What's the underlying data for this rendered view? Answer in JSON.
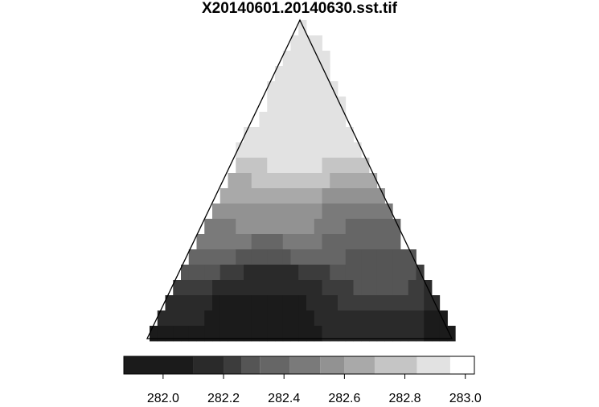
{
  "chart_data": {
    "type": "heatmap",
    "title": "X20140601.20140630.sst.tif",
    "xlabel": "",
    "ylabel": "",
    "grid": false,
    "legend": {
      "type": "colorbar",
      "placement": "bottom",
      "range": [
        281.87,
        283.03
      ],
      "ticks": [
        282.0,
        282.2,
        282.4,
        282.6,
        282.8,
        283.0
      ],
      "tick_labels": [
        "282.0",
        "282.2",
        "282.4",
        "282.6",
        "282.8",
        "283.0"
      ],
      "breaks": [
        281.87,
        282.1,
        282.2,
        282.26,
        282.32,
        282.42,
        282.52,
        282.6,
        282.7,
        282.84,
        282.95,
        283.03
      ],
      "colors": [
        "#1b1b1b",
        "#2a2a2a",
        "#3c3c3c",
        "#555555",
        "#666666",
        "#7a7a7a",
        "#929292",
        "#a9a9a9",
        "#c5c5c5",
        "#e2e2e2"
      ]
    },
    "grid_size": [
      39,
      21
    ],
    "extent": "triangle",
    "values": [
      [
        0,
        0,
        0,
        0,
        0,
        0,
        0,
        0,
        0,
        0,
        0,
        0,
        0,
        0,
        0,
        0,
        0,
        0,
        0,
        282.99,
        0,
        0,
        0,
        0,
        0,
        0,
        0,
        0,
        0,
        0,
        0,
        0,
        0,
        0,
        0,
        0,
        0,
        0,
        0
      ],
      [
        0,
        0,
        0,
        0,
        0,
        0,
        0,
        0,
        0,
        0,
        0,
        0,
        0,
        0,
        0,
        0,
        0,
        0,
        282.99,
        282.99,
        282.99,
        282.99,
        0,
        0,
        0,
        0,
        0,
        0,
        0,
        0,
        0,
        0,
        0,
        0,
        0,
        0,
        0,
        0,
        0
      ],
      [
        0,
        0,
        0,
        0,
        0,
        0,
        0,
        0,
        0,
        0,
        0,
        0,
        0,
        0,
        0,
        0,
        0,
        282.99,
        282.99,
        282.99,
        282.99,
        282.99,
        282.99,
        0,
        0,
        0,
        0,
        0,
        0,
        0,
        0,
        0,
        0,
        0,
        0,
        0,
        0,
        0,
        0
      ],
      [
        0,
        0,
        0,
        0,
        0,
        0,
        0,
        0,
        0,
        0,
        0,
        0,
        0,
        0,
        0,
        0,
        282.99,
        282.99,
        282.99,
        282.99,
        282.99,
        282.99,
        282.99,
        0,
        0,
        0,
        0,
        0,
        0,
        0,
        0,
        0,
        0,
        0,
        0,
        0,
        0,
        0,
        0
      ],
      [
        0,
        0,
        0,
        0,
        0,
        0,
        0,
        0,
        0,
        0,
        0,
        0,
        0,
        0,
        0,
        282.99,
        282.99,
        282.99,
        282.99,
        282.99,
        282.99,
        282.99,
        282.99,
        282.99,
        0,
        0,
        0,
        0,
        0,
        0,
        0,
        0,
        0,
        0,
        0,
        0,
        0,
        0,
        0
      ],
      [
        0,
        0,
        0,
        0,
        0,
        0,
        0,
        0,
        0,
        0,
        0,
        0,
        0,
        0,
        0,
        282.99,
        282.99,
        282.99,
        282.99,
        282.99,
        282.99,
        282.99,
        282.99,
        282.99,
        282.99,
        0,
        0,
        0,
        0,
        0,
        0,
        0,
        0,
        0,
        0,
        0,
        0,
        0,
        0
      ],
      [
        0,
        0,
        0,
        0,
        0,
        0,
        0,
        0,
        0,
        0,
        0,
        0,
        0,
        0,
        282.9,
        282.9,
        282.9,
        282.9,
        282.9,
        282.9,
        282.9,
        282.9,
        282.9,
        282.9,
        282.9,
        0,
        0,
        0,
        0,
        0,
        0,
        0,
        0,
        0,
        0,
        0,
        0,
        0,
        0
      ],
      [
        0,
        0,
        0,
        0,
        0,
        0,
        0,
        0,
        0,
        0,
        0,
        0,
        282.9,
        282.9,
        282.9,
        282.9,
        282.9,
        282.9,
        282.9,
        282.9,
        282.9,
        282.9,
        282.9,
        282.9,
        282.9,
        282.9,
        0,
        0,
        0,
        0,
        0,
        0,
        0,
        0,
        0,
        0,
        0,
        0,
        0
      ],
      [
        0,
        0,
        0,
        0,
        0,
        0,
        0,
        0,
        0,
        0,
        0,
        282.9,
        282.9,
        282.9,
        282.9,
        282.9,
        282.9,
        282.9,
        282.9,
        282.9,
        282.9,
        282.9,
        282.9,
        282.9,
        282.9,
        282.9,
        282.9,
        0,
        0,
        0,
        0,
        0,
        0,
        0,
        0,
        0,
        0,
        0,
        0
      ],
      [
        0,
        0,
        0,
        0,
        0,
        0,
        0,
        0,
        0,
        0,
        0,
        282.77,
        282.77,
        282.77,
        282.77,
        282.9,
        282.9,
        282.9,
        282.9,
        282.9,
        282.9,
        282.9,
        282.77,
        282.77,
        282.77,
        282.77,
        282.77,
        282.77,
        0,
        0,
        0,
        0,
        0,
        0,
        0,
        0,
        0,
        0,
        0
      ],
      [
        0,
        0,
        0,
        0,
        0,
        0,
        0,
        0,
        0,
        0,
        282.65,
        282.65,
        282.65,
        282.77,
        282.77,
        282.77,
        282.77,
        282.77,
        282.77,
        282.77,
        282.77,
        282.77,
        282.77,
        282.65,
        282.65,
        282.65,
        282.65,
        282.65,
        282.65,
        0,
        0,
        0,
        0,
        0,
        0,
        0,
        0,
        0,
        0
      ],
      [
        0,
        0,
        0,
        0,
        0,
        0,
        0,
        0,
        0,
        282.65,
        282.65,
        282.65,
        282.65,
        282.65,
        282.65,
        282.65,
        282.65,
        282.65,
        282.65,
        282.65,
        282.65,
        282.65,
        282.57,
        282.57,
        282.57,
        282.57,
        282.57,
        282.57,
        282.57,
        282.57,
        0,
        0,
        0,
        0,
        0,
        0,
        0,
        0,
        0
      ],
      [
        0,
        0,
        0,
        0,
        0,
        0,
        0,
        0,
        282.57,
        282.57,
        282.57,
        282.57,
        282.57,
        282.57,
        282.57,
        282.57,
        282.57,
        282.57,
        282.57,
        282.57,
        282.57,
        282.57,
        282.47,
        282.47,
        282.47,
        282.47,
        282.47,
        282.47,
        282.47,
        282.47,
        282.47,
        0,
        0,
        0,
        0,
        0,
        0,
        0,
        0
      ],
      [
        0,
        0,
        0,
        0,
        0,
        0,
        0,
        282.47,
        282.47,
        282.47,
        282.47,
        282.57,
        282.57,
        282.57,
        282.57,
        282.57,
        282.57,
        282.57,
        282.57,
        282.57,
        282.57,
        282.47,
        282.47,
        282.47,
        282.47,
        282.37,
        282.37,
        282.37,
        282.37,
        282.37,
        282.37,
        282.37,
        0,
        0,
        0,
        0,
        0,
        0,
        0
      ],
      [
        0,
        0,
        0,
        0,
        0,
        0,
        282.47,
        282.47,
        282.47,
        282.47,
        282.47,
        282.47,
        282.47,
        282.37,
        282.37,
        282.37,
        282.37,
        282.47,
        282.47,
        282.47,
        282.47,
        282.47,
        282.37,
        282.37,
        282.37,
        282.37,
        282.37,
        282.37,
        282.37,
        282.37,
        282.37,
        282.37,
        0,
        0,
        0,
        0,
        0,
        0,
        0
      ],
      [
        0,
        0,
        0,
        0,
        0,
        282.37,
        282.37,
        282.37,
        282.37,
        282.37,
        282.37,
        282.29,
        282.29,
        282.29,
        282.29,
        282.29,
        282.29,
        282.29,
        282.37,
        282.37,
        282.37,
        282.37,
        282.37,
        282.37,
        282.37,
        282.29,
        282.29,
        282.29,
        282.29,
        282.29,
        282.29,
        282.29,
        282.29,
        282.29,
        0,
        0,
        0,
        0,
        0
      ],
      [
        0,
        0,
        0,
        0,
        282.29,
        282.29,
        282.29,
        282.29,
        282.29,
        282.23,
        282.23,
        282.23,
        282.15,
        282.15,
        282.15,
        282.15,
        282.15,
        282.15,
        282.15,
        282.23,
        282.23,
        282.23,
        282.23,
        282.29,
        282.29,
        282.29,
        282.29,
        282.29,
        282.29,
        282.29,
        282.29,
        282.29,
        282.29,
        282.29,
        282.23,
        0,
        0,
        0,
        0
      ],
      [
        0,
        0,
        0,
        282.23,
        282.23,
        282.23,
        282.23,
        282.23,
        282.15,
        282.15,
        282.15,
        282.15,
        282.15,
        282.15,
        282.15,
        282.15,
        282.15,
        282.15,
        282.15,
        282.15,
        282.15,
        282.15,
        282.23,
        282.23,
        282.23,
        282.23,
        282.29,
        282.29,
        282.29,
        282.29,
        282.29,
        282.29,
        282.29,
        282.23,
        282.23,
        282.15,
        0,
        0,
        0
      ],
      [
        0,
        0,
        282.15,
        282.15,
        282.15,
        282.15,
        282.15,
        282.15,
        282.0,
        282.0,
        282.0,
        282.0,
        282.0,
        282.0,
        282.0,
        282.0,
        282.0,
        282.0,
        282.0,
        282.0,
        282.15,
        282.15,
        282.15,
        282.15,
        282.23,
        282.23,
        282.23,
        282.23,
        282.23,
        282.23,
        282.23,
        282.23,
        282.23,
        282.23,
        282.23,
        282.15,
        282.15,
        0,
        0
      ],
      [
        0,
        282.15,
        282.15,
        282.15,
        282.15,
        282.15,
        282.15,
        282.0,
        282.0,
        282.0,
        282.0,
        282.0,
        282.0,
        282.0,
        282.0,
        282.0,
        282.0,
        282.0,
        282.0,
        282.0,
        282.0,
        282.15,
        282.15,
        282.15,
        282.15,
        282.15,
        282.15,
        282.15,
        282.15,
        282.15,
        282.15,
        282.15,
        282.15,
        282.15,
        282.15,
        282.0,
        282.0,
        282.0,
        0
      ],
      [
        282.0,
        282.0,
        282.0,
        282.0,
        282.0,
        282.0,
        282.0,
        282.0,
        282.0,
        282.0,
        282.0,
        282.0,
        282.0,
        282.0,
        282.0,
        282.0,
        282.0,
        282.0,
        282.0,
        282.0,
        282.0,
        282.0,
        282.15,
        282.15,
        282.15,
        282.15,
        282.15,
        282.15,
        282.15,
        282.15,
        282.15,
        282.15,
        282.15,
        282.15,
        282.15,
        282.0,
        282.0,
        282.0,
        282.0
      ]
    ]
  }
}
